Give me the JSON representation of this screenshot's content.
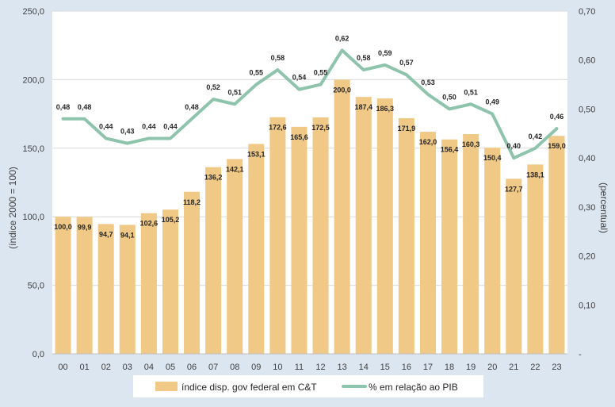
{
  "chart_data": {
    "type": "bar+line",
    "categories": [
      "00",
      "01",
      "02",
      "03",
      "04",
      "05",
      "06",
      "07",
      "08",
      "09",
      "10",
      "11",
      "12",
      "13",
      "14",
      "15",
      "16",
      "17",
      "18",
      "19",
      "20",
      "21",
      "22",
      "23"
    ],
    "series": [
      {
        "name": "índice disp. gov federal em C&T",
        "type": "bar",
        "axis": "left",
        "color": "#f0c987",
        "values": [
          100.0,
          99.9,
          94.7,
          94.1,
          102.6,
          105.2,
          118.2,
          136.2,
          142.1,
          153.1,
          172.6,
          165.6,
          172.5,
          200.0,
          187.4,
          186.3,
          171.9,
          162.0,
          156.4,
          160.3,
          150.4,
          127.7,
          138.1,
          159.0
        ],
        "labels": [
          "100,0",
          "99,9",
          "94,7",
          "94,1",
          "102,6",
          "105,2",
          "118,2",
          "136,2",
          "142,1",
          "153,1",
          "172,6",
          "165,6",
          "172,5",
          "200,0",
          "187,4",
          "186,3",
          "171,9",
          "162,0",
          "156,4",
          "160,3",
          "150,4",
          "127,7",
          "138,1",
          "159,0"
        ]
      },
      {
        "name": "% em relação ao PIB",
        "type": "line",
        "axis": "right",
        "color": "#8ec4ac",
        "values": [
          0.48,
          0.48,
          0.44,
          0.43,
          0.44,
          0.44,
          0.48,
          0.52,
          0.51,
          0.55,
          0.58,
          0.54,
          0.55,
          0.62,
          0.58,
          0.59,
          0.57,
          0.53,
          0.5,
          0.51,
          0.49,
          0.4,
          0.42,
          0.46
        ],
        "labels": [
          "0,48",
          "0,48",
          "0,44",
          "0,43",
          "0,44",
          "0,44",
          "0,48",
          "0,52",
          "0,51",
          "0,55",
          "0,58",
          "0,54",
          "0,55",
          "0,62",
          "0,58",
          "0,59",
          "0,57",
          "0,53",
          "0,50",
          "0,51",
          "0,49",
          "0,40",
          "0,42",
          "0,46"
        ]
      }
    ],
    "ylabel_left": "(índice 2000 = 100)",
    "ylabel_right": "(percentual)",
    "ylim_left": [
      0,
      250
    ],
    "ylim_right": [
      0,
      0.7
    ],
    "yticks_left": [
      0,
      50,
      100,
      150,
      200,
      250
    ],
    "yticks_left_labels": [
      "0,0",
      "50,0",
      "100,0",
      "150,0",
      "200,0",
      "250,0"
    ],
    "yticks_right": [
      0,
      0.1,
      0.2,
      0.3,
      0.4,
      0.5,
      0.6,
      0.7
    ],
    "yticks_right_labels": [
      "-",
      "0,10",
      "0,20",
      "0,30",
      "0,40",
      "0,50",
      "0,60",
      "0,70"
    ],
    "grid": true,
    "legend": "bottom"
  }
}
